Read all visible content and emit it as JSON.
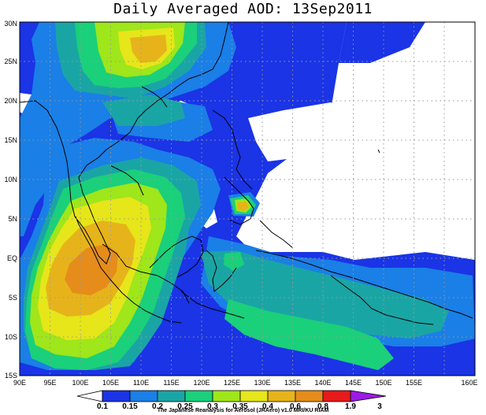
{
  "title": "Daily Averaged AOD: 13Sep2011",
  "credit": "The Japanese Reanalysis for Aerosol (JRAero) v1.0 MRI/KU RIAM",
  "map": {
    "lon_ticks": [
      "90E",
      "95E",
      "100E",
      "105E",
      "110E",
      "115E",
      "120E",
      "125E",
      "130E",
      "135E",
      "140E",
      "145E",
      "150E",
      "155E",
      "160E"
    ],
    "lat_ticks": [
      "30N",
      "25N",
      "20N",
      "15N",
      "10N",
      "5N",
      "EQ",
      "5S",
      "10S",
      "15S"
    ]
  },
  "colorbar": {
    "levels": [
      "0.1",
      "0.15",
      "0.2",
      "0.25",
      "0.3",
      "0.35",
      "0.4",
      "0.6",
      "0.8",
      "1.9",
      "3"
    ],
    "colors": [
      "#ffffff",
      "#1a34e6",
      "#1a7fe6",
      "#1aa5a5",
      "#1ad07a",
      "#9fe61a",
      "#e6e61a",
      "#e6b41a",
      "#e68c1a",
      "#e61a1a",
      "#9a1ae6"
    ]
  },
  "colors": {
    "ocean": "#ffffff",
    "low": "#1a34e6",
    "lowmid": "#1a7fe6",
    "mid": "#1aa5a5",
    "midhigh": "#1ad07a",
    "high": "#9fe61a",
    "yellow": "#e6e61a",
    "orange": "#e6b41a",
    "darkorange": "#e68c1a",
    "coast": "#000000",
    "grid": "#9a9a9a"
  }
}
